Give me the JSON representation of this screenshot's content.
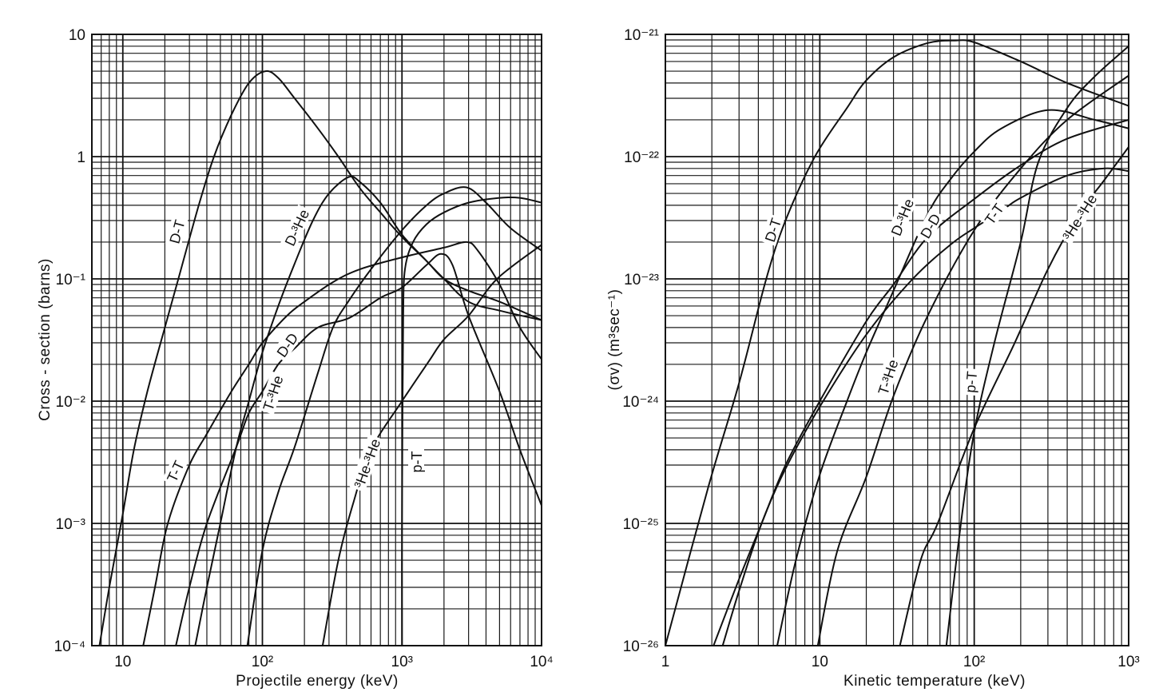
{
  "chart_data": [
    {
      "type": "line",
      "xscale": "log",
      "yscale": "log",
      "xlabel": "Projectile energy (keV)",
      "ylabel": "Cross - section (barns)",
      "xlim": [
        6,
        10000
      ],
      "ylim": [
        0.0001,
        10
      ],
      "grid": true,
      "x_ticks": [
        {
          "value": 10,
          "label": "10"
        },
        {
          "value": 100,
          "label": "10²"
        },
        {
          "value": 1000,
          "label": "10³"
        },
        {
          "value": 10000,
          "label": "10⁴"
        }
      ],
      "y_ticks": [
        {
          "value": 10,
          "label": "10"
        },
        {
          "value": 1,
          "label": "1"
        },
        {
          "value": 0.1,
          "label": "10⁻¹"
        },
        {
          "value": 0.01,
          "label": "10⁻²"
        },
        {
          "value": 0.001,
          "label": "10⁻³"
        },
        {
          "value": 0.0001,
          "label": "10⁻⁴"
        }
      ],
      "series": [
        {
          "name": "D-T",
          "points": [
            [
              6.8,
              0.0001
            ],
            [
              8,
              0.0003
            ],
            [
              10,
              0.0012
            ],
            [
              12,
              0.004
            ],
            [
              15,
              0.012
            ],
            [
              20,
              0.04
            ],
            [
              25,
              0.1
            ],
            [
              35,
              0.4
            ],
            [
              45,
              1
            ],
            [
              60,
              2.2
            ],
            [
              80,
              4
            ],
            [
              105,
              5
            ],
            [
              130,
              4.4
            ],
            [
              170,
              3
            ],
            [
              250,
              1.7
            ],
            [
              350,
              1
            ],
            [
              500,
              0.55
            ],
            [
              700,
              0.35
            ],
            [
              1000,
              0.22
            ],
            [
              1500,
              0.14
            ],
            [
              2000,
              0.1
            ],
            [
              3000,
              0.08
            ],
            [
              5000,
              0.065
            ],
            [
              10000,
              0.046
            ]
          ]
        },
        {
          "name": "D-³He",
          "points": [
            [
              33,
              0.0001
            ],
            [
              40,
              0.0003
            ],
            [
              50,
              0.001
            ],
            [
              65,
              0.0042
            ],
            [
              80,
              0.01
            ],
            [
              100,
              0.025
            ],
            [
              130,
              0.06
            ],
            [
              170,
              0.133
            ],
            [
              230,
              0.3
            ],
            [
              300,
              0.5
            ],
            [
              415,
              0.68
            ],
            [
              500,
              0.62
            ],
            [
              700,
              0.42
            ],
            [
              1000,
              0.23
            ],
            [
              1500,
              0.14
            ],
            [
              2000,
              0.1
            ],
            [
              3000,
              0.065
            ],
            [
              5000,
              0.055
            ],
            [
              10000,
              0.046
            ]
          ]
        },
        {
          "name": "T-T",
          "points": [
            [
              24,
              0.0001
            ],
            [
              30,
              0.0003
            ],
            [
              40,
              0.001
            ],
            [
              65,
              0.0042
            ],
            [
              80,
              0.008
            ],
            [
              100,
              0.012
            ],
            [
              130,
              0.02
            ],
            [
              170,
              0.027
            ],
            [
              250,
              0.04
            ],
            [
              420,
              0.048
            ],
            [
              700,
              0.07
            ],
            [
              1000,
              0.085
            ],
            [
              1500,
              0.13
            ],
            [
              1900,
              0.16
            ],
            [
              2300,
              0.13
            ],
            [
              3000,
              0.05
            ],
            [
              5000,
              0.012
            ],
            [
              7000,
              0.004
            ],
            [
              10000,
              0.0014
            ]
          ]
        },
        {
          "name": "D-D",
          "points": [
            [
              14,
              0.0001
            ],
            [
              17,
              0.0003
            ],
            [
              21,
              0.001
            ],
            [
              30,
              0.003
            ],
            [
              40,
              0.0054
            ],
            [
              60,
              0.012
            ],
            [
              80,
              0.02
            ],
            [
              100,
              0.03
            ],
            [
              150,
              0.05
            ],
            [
              200,
              0.065
            ],
            [
              320,
              0.094
            ],
            [
              500,
              0.12
            ],
            [
              1000,
              0.15
            ],
            [
              2000,
              0.18
            ],
            [
              2900,
              0.2
            ],
            [
              3500,
              0.17
            ],
            [
              5000,
              0.09
            ],
            [
              7000,
              0.04
            ],
            [
              10000,
              0.022
            ]
          ]
        },
        {
          "name": "T-³He",
          "points": [
            [
              78,
              0.0001
            ],
            [
              100,
              0.0006
            ],
            [
              130,
              0.0018
            ],
            [
              170,
              0.0042
            ],
            [
              250,
              0.017
            ],
            [
              320,
              0.04
            ],
            [
              415,
              0.066
            ],
            [
              600,
              0.12
            ],
            [
              1000,
              0.25
            ],
            [
              1500,
              0.4
            ],
            [
              2000,
              0.5
            ],
            [
              2900,
              0.56
            ],
            [
              4000,
              0.42
            ],
            [
              6000,
              0.26
            ],
            [
              10000,
              0.17
            ]
          ]
        },
        {
          "name": "³He-³He",
          "points": [
            [
              270,
              0.0001
            ],
            [
              350,
              0.0005
            ],
            [
              450,
              0.0015
            ],
            [
              600,
              0.004
            ],
            [
              1000,
              0.01
            ],
            [
              1550,
              0.021
            ],
            [
              2000,
              0.032
            ],
            [
              3000,
              0.05
            ],
            [
              4800,
              0.1
            ],
            [
              10000,
              0.19
            ]
          ]
        },
        {
          "name": "p-T",
          "points": [
            [
              1000,
              0.0001
            ],
            [
              1000,
              0.001
            ],
            [
              1010,
              0.01
            ],
            [
              1020,
              0.05
            ],
            [
              1050,
              0.12
            ],
            [
              1200,
              0.2
            ],
            [
              1500,
              0.28
            ],
            [
              2000,
              0.35
            ],
            [
              3000,
              0.42
            ],
            [
              5000,
              0.46
            ],
            [
              7000,
              0.46
            ],
            [
              10000,
              0.42
            ]
          ]
        }
      ]
    },
    {
      "type": "line",
      "xscale": "log",
      "yscale": "log",
      "xlabel": "Kinetic temperature (keV)",
      "ylabel": "(σv)    (m³sec⁻¹)",
      "xlim": [
        1,
        1000
      ],
      "ylim": [
        1e-26,
        1e-21
      ],
      "grid": true,
      "x_ticks": [
        {
          "value": 1,
          "label": "1"
        },
        {
          "value": 10,
          "label": "10"
        },
        {
          "value": 100,
          "label": "10²"
        },
        {
          "value": 1000,
          "label": "10³"
        }
      ],
      "y_ticks": [
        {
          "value": 1e-21,
          "label": "10⁻²¹"
        },
        {
          "value": 1e-22,
          "label": "10⁻²²"
        },
        {
          "value": 1e-23,
          "label": "10⁻²³"
        },
        {
          "value": 1e-24,
          "label": "10⁻²⁴"
        },
        {
          "value": 1e-25,
          "label": "10⁻²⁵"
        },
        {
          "value": 1e-26,
          "label": "10⁻²⁶"
        }
      ],
      "series": [
        {
          "name": "D-T",
          "points": [
            [
              1,
              1e-26
            ],
            [
              1.9,
              2e-25
            ],
            [
              3,
              1.4e-24
            ],
            [
              4.5,
              1e-23
            ],
            [
              6,
              3e-23
            ],
            [
              9.3,
              1e-22
            ],
            [
              15,
              2.5e-22
            ],
            [
              20,
              4.2e-22
            ],
            [
              30,
              6.5e-22
            ],
            [
              50,
              8.5e-22
            ],
            [
              75,
              8.9e-22
            ],
            [
              100,
              8.6e-22
            ],
            [
              200,
              6e-22
            ],
            [
              400,
              4e-22
            ],
            [
              1000,
              2.6e-22
            ]
          ]
        },
        {
          "name": "D-³He",
          "points": [
            [
              5.3,
              1e-26
            ],
            [
              7,
              5e-26
            ],
            [
              10,
              2.5e-25
            ],
            [
              15,
              1e-24
            ],
            [
              20,
              2.5e-24
            ],
            [
              30,
              8e-24
            ],
            [
              50,
              3.4e-23
            ],
            [
              70,
              6.5e-23
            ],
            [
              100,
              1.1e-22
            ],
            [
              150,
              1.7e-22
            ],
            [
              300,
              2.4e-22
            ],
            [
              600,
              2e-22
            ],
            [
              1000,
              1.7e-22
            ]
          ]
        },
        {
          "name": "D-D",
          "points": [
            [
              2.05,
              1e-26
            ],
            [
              3,
              3.5e-26
            ],
            [
              4.2,
              1e-25
            ],
            [
              6,
              3e-25
            ],
            [
              10,
              1e-24
            ],
            [
              20,
              4.5e-24
            ],
            [
              30,
              9e-24
            ],
            [
              50,
              2.2e-23
            ],
            [
              100,
              4.5e-23
            ],
            [
              200,
              8.5e-23
            ],
            [
              400,
              1.4e-22
            ],
            [
              1000,
              2e-22
            ]
          ]
        },
        {
          "name": "T-T",
          "points": [
            [
              2.35,
              1e-26
            ],
            [
              3,
              2.8e-26
            ],
            [
              4.2,
              1e-25
            ],
            [
              6,
              2.8e-25
            ],
            [
              10,
              9e-25
            ],
            [
              20,
              3.5e-24
            ],
            [
              40,
              1e-23
            ],
            [
              70,
              1.9e-23
            ],
            [
              100,
              2.6e-23
            ],
            [
              150,
              3.6e-23
            ],
            [
              200,
              4.6e-23
            ],
            [
              400,
              7e-23
            ],
            [
              700,
              8e-23
            ],
            [
              1000,
              7.6e-23
            ]
          ]
        },
        {
          "name": "T-³He",
          "points": [
            [
              9.7,
              1e-26
            ],
            [
              13,
              6e-26
            ],
            [
              20,
              2.4e-25
            ],
            [
              30,
              1.1e-24
            ],
            [
              50,
              5e-24
            ],
            [
              100,
              2.5e-23
            ],
            [
              200,
              8e-23
            ],
            [
              400,
              2e-22
            ],
            [
              1000,
              4.6e-22
            ]
          ]
        },
        {
          "name": "p-T",
          "points": [
            [
              66,
              1e-26
            ],
            [
              82,
              1e-25
            ],
            [
              100,
              5.6e-25
            ],
            [
              135,
              3e-24
            ],
            [
              200,
              2e-23
            ],
            [
              260,
              9e-23
            ],
            [
              400,
              2.5e-22
            ],
            [
              600,
              4.5e-22
            ],
            [
              1000,
              8e-22
            ]
          ]
        },
        {
          "name": "³He-³He",
          "points": [
            [
              33,
              1e-26
            ],
            [
              45,
              5e-26
            ],
            [
              58,
              1e-25
            ],
            [
              100,
              6e-25
            ],
            [
              183,
              3e-24
            ],
            [
              300,
              1.2e-23
            ],
            [
              470,
              3.3e-23
            ],
            [
              700,
              6.5e-23
            ],
            [
              1000,
              1.2e-22
            ]
          ]
        }
      ]
    }
  ]
}
